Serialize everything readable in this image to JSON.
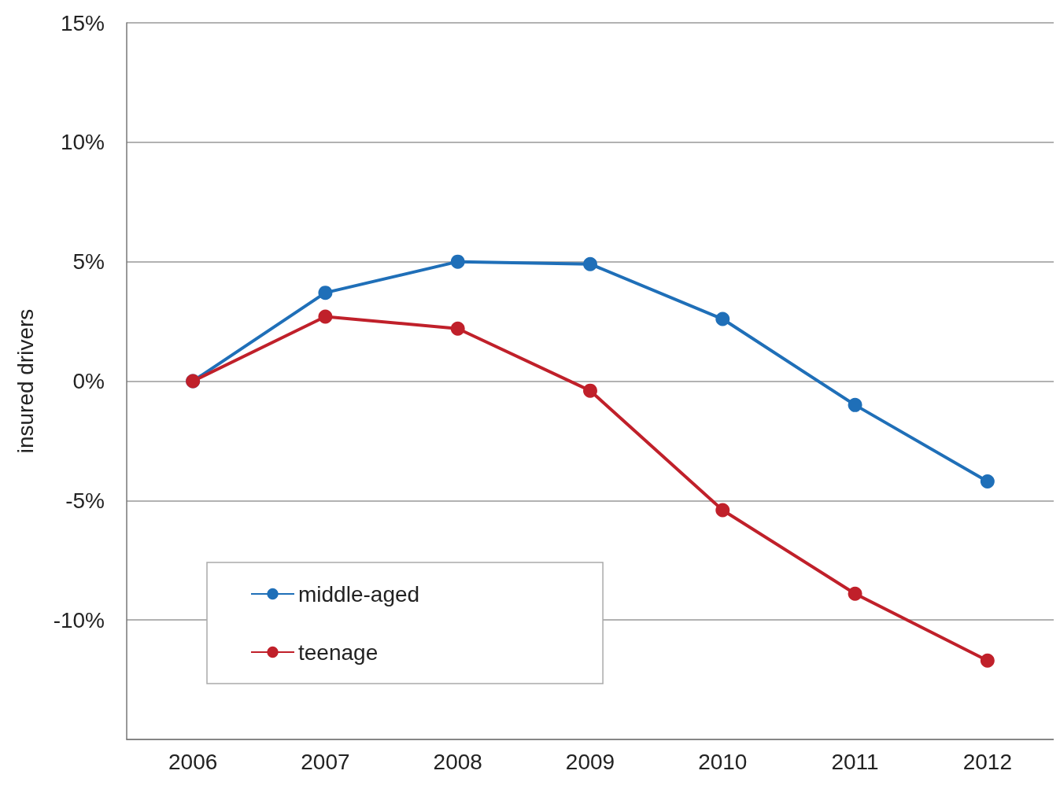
{
  "chart_data": {
    "type": "line",
    "ylabel": "insured drivers",
    "categories": [
      "2006",
      "2007",
      "2008",
      "2009",
      "2010",
      "2011",
      "2012"
    ],
    "series": [
      {
        "name": "middle-aged",
        "color": "#1f6fb8",
        "values": [
          0,
          3.7,
          5.0,
          4.9,
          2.6,
          -1.0,
          -4.2
        ]
      },
      {
        "name": "teenage",
        "color": "#c0202a",
        "values": [
          0,
          2.7,
          2.2,
          -0.4,
          -5.4,
          -8.9,
          -11.7
        ]
      }
    ],
    "ylim": [
      -15,
      15
    ],
    "yticks": [
      {
        "value": -15,
        "label": null
      },
      {
        "value": -10,
        "label": "-10%"
      },
      {
        "value": -5,
        "label": "-5%"
      },
      {
        "value": 0,
        "label": "0%"
      },
      {
        "value": 5,
        "label": "5%"
      },
      {
        "value": 10,
        "label": "10%"
      },
      {
        "value": 15,
        "label": "15%"
      }
    ],
    "grid": "y",
    "legend": "bottom left",
    "marker": "circle",
    "line_style": "solid"
  }
}
